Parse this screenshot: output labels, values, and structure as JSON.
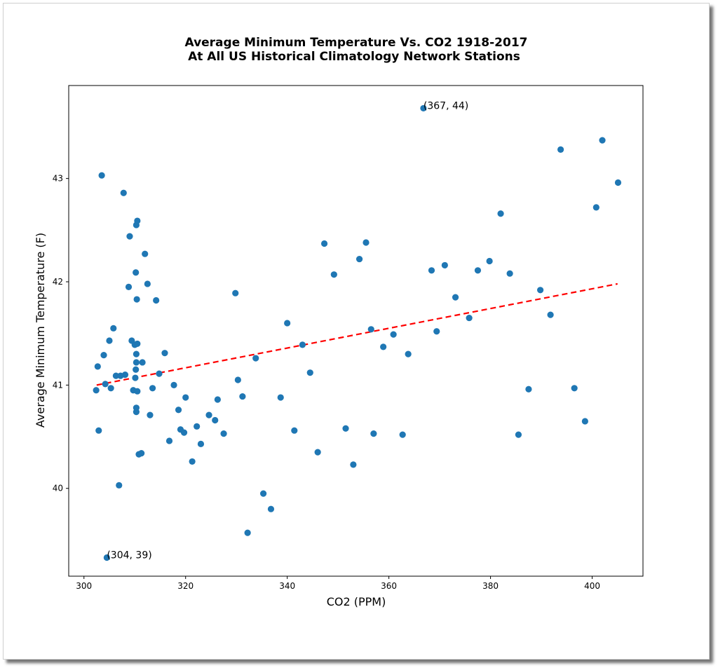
{
  "chart_data": {
    "type": "scatter",
    "title_line1": "Average Minimum Temperature Vs. CO2 1918-2017",
    "title_line2": "At All US Historical Climatology Network Stations",
    "xlabel": "CO2 (PPM)",
    "ylabel": "Average Minimum Temperature (F)",
    "xlim": [
      297,
      410
    ],
    "ylim": [
      39.15,
      43.9
    ],
    "xticks": [
      300,
      320,
      340,
      360,
      380,
      400
    ],
    "yticks": [
      40,
      41,
      42,
      43
    ],
    "grid": false,
    "legend": "none",
    "point_color": "#1f77b4",
    "trend_color": "#ff0000",
    "trendline": {
      "x": [
        302.5,
        405
      ],
      "y": [
        41.0,
        41.98
      ],
      "style": "dashed"
    },
    "annotations": [
      {
        "text": "(367, 44)",
        "x": 366.8,
        "y": 43.68
      },
      {
        "text": "(304, 39)",
        "x": 304.5,
        "y": 39.33
      }
    ],
    "points": [
      [
        366.8,
        43.68
      ],
      [
        304.5,
        39.33
      ],
      [
        402,
        43.37
      ],
      [
        393.8,
        43.28
      ],
      [
        405.1,
        42.96
      ],
      [
        400.8,
        42.72
      ],
      [
        303.5,
        43.03
      ],
      [
        307.8,
        42.86
      ],
      [
        310.5,
        42.59
      ],
      [
        310.3,
        42.55
      ],
      [
        309,
        42.44
      ],
      [
        382,
        42.66
      ],
      [
        312,
        42.27
      ],
      [
        355.5,
        42.38
      ],
      [
        347.3,
        42.37
      ],
      [
        354.2,
        42.22
      ],
      [
        379.8,
        42.2
      ],
      [
        371,
        42.16
      ],
      [
        368.4,
        42.11
      ],
      [
        377.5,
        42.11
      ],
      [
        383.8,
        42.08
      ],
      [
        349.2,
        42.07
      ],
      [
        310.2,
        42.09
      ],
      [
        312.5,
        41.98
      ],
      [
        308.8,
        41.95
      ],
      [
        389.8,
        41.92
      ],
      [
        329.8,
        41.89
      ],
      [
        373.1,
        41.85
      ],
      [
        310.4,
        41.83
      ],
      [
        314.2,
        41.82
      ],
      [
        391.8,
        41.68
      ],
      [
        375.8,
        41.65
      ],
      [
        340,
        41.6
      ],
      [
        305.8,
        41.55
      ],
      [
        356.5,
        41.54
      ],
      [
        369.4,
        41.52
      ],
      [
        360.9,
        41.49
      ],
      [
        309.4,
        41.43
      ],
      [
        305,
        41.43
      ],
      [
        310.5,
        41.4
      ],
      [
        310,
        41.39
      ],
      [
        343,
        41.39
      ],
      [
        358.9,
        41.37
      ],
      [
        315.9,
        41.31
      ],
      [
        310.3,
        41.3
      ],
      [
        303.9,
        41.29
      ],
      [
        363.8,
        41.3
      ],
      [
        333.8,
        41.26
      ],
      [
        310.3,
        41.22
      ],
      [
        311.5,
        41.22
      ],
      [
        302.7,
        41.18
      ],
      [
        310.2,
        41.15
      ],
      [
        344.5,
        41.12
      ],
      [
        314.8,
        41.11
      ],
      [
        308.1,
        41.1
      ],
      [
        306.3,
        41.09
      ],
      [
        307.2,
        41.09
      ],
      [
        310.1,
        41.07
      ],
      [
        330.3,
        41.05
      ],
      [
        304.2,
        41.01
      ],
      [
        317.7,
        41.0
      ],
      [
        305.3,
        40.97
      ],
      [
        313.5,
        40.97
      ],
      [
        396.5,
        40.97
      ],
      [
        302.4,
        40.95
      ],
      [
        309.7,
        40.95
      ],
      [
        310.5,
        40.94
      ],
      [
        387.5,
        40.96
      ],
      [
        331.2,
        40.89
      ],
      [
        320,
        40.88
      ],
      [
        338.7,
        40.88
      ],
      [
        326.3,
        40.86
      ],
      [
        310.3,
        40.78
      ],
      [
        318.6,
        40.76
      ],
      [
        310.3,
        40.74
      ],
      [
        313,
        40.71
      ],
      [
        324.6,
        40.71
      ],
      [
        325.8,
        40.66
      ],
      [
        322.2,
        40.6
      ],
      [
        302.9,
        40.56
      ],
      [
        319,
        40.57
      ],
      [
        351.5,
        40.58
      ],
      [
        319.7,
        40.54
      ],
      [
        327.5,
        40.53
      ],
      [
        341.4,
        40.56
      ],
      [
        357,
        40.53
      ],
      [
        362.7,
        40.52
      ],
      [
        385.5,
        40.52
      ],
      [
        398.6,
        40.65
      ],
      [
        316.8,
        40.46
      ],
      [
        323,
        40.43
      ],
      [
        310.8,
        40.33
      ],
      [
        311.3,
        40.34
      ],
      [
        346,
        40.35
      ],
      [
        321.3,
        40.26
      ],
      [
        353,
        40.23
      ],
      [
        306.9,
        40.03
      ],
      [
        335.3,
        39.95
      ],
      [
        336.8,
        39.8
      ],
      [
        332.2,
        39.57
      ]
    ]
  }
}
